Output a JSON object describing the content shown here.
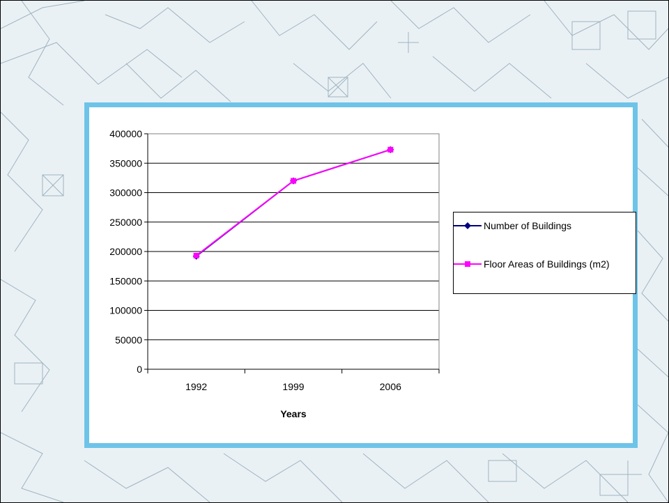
{
  "colors": {
    "frame_border": "#6ec3e8",
    "map_lines": "#9fb3bf",
    "map_background": "#eaf1f5"
  },
  "chart_data": {
    "type": "line",
    "title": "",
    "xlabel": "Years",
    "ylabel": "",
    "categories": [
      "1992",
      "1999",
      "2006"
    ],
    "ylim": [
      0,
      400000
    ],
    "yticks": [
      0,
      50000,
      100000,
      150000,
      200000,
      250000,
      300000,
      350000,
      400000
    ],
    "grid": "horizontal",
    "legend_position": "right",
    "series": [
      {
        "name": "Number of Buildings",
        "color": "#000080",
        "marker": "diamond",
        "values": [
          192000,
          320000,
          373000
        ]
      },
      {
        "name": "Floor Areas of Buildings (m2)",
        "color": "#ff00ff",
        "marker": "square",
        "values": [
          193000,
          320000,
          373000
        ]
      }
    ]
  }
}
